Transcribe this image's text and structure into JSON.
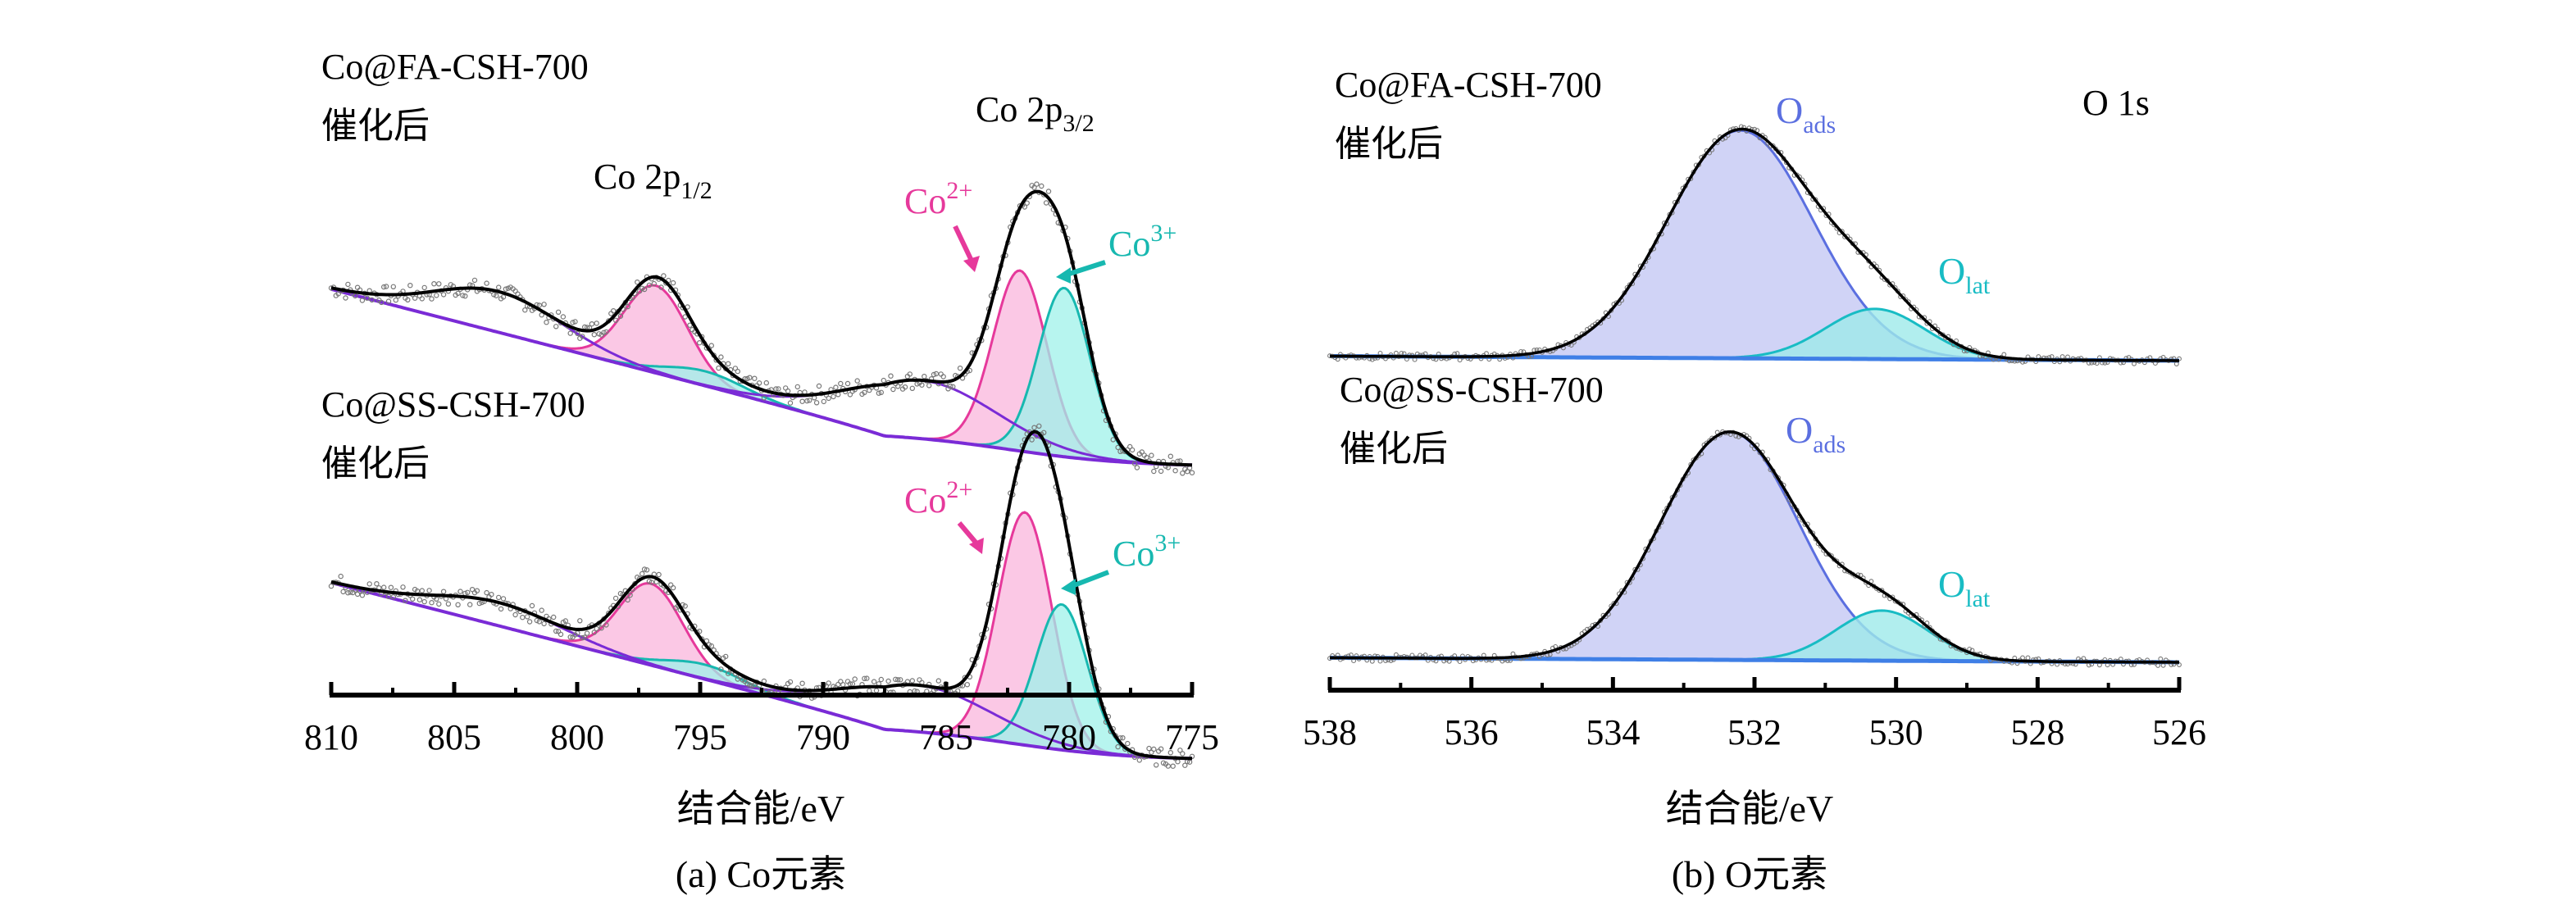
{
  "colors": {
    "envelope": "#000000",
    "background_line": "#7a2bd6",
    "co2_fill": "#f9b6dc",
    "co2_line": "#e6399b",
    "co3_fill": "#9ff2ea",
    "co3_line": "#17b8b0",
    "oads_fill": "#c4c8f4",
    "oads_line": "#5b6fe0",
    "olat_fill": "#9eeaea",
    "olat_line": "#18bcc4",
    "o_baseline": "#3f7fe6",
    "points": "#777777"
  },
  "chart_data": [
    {
      "id": "co",
      "type": "line",
      "chart_type_detail": "XPS spectrum with peak fitting (stacked, offset vertically)",
      "caption": "(a) Co元素",
      "xlabel": "结合能/eV",
      "xlim": [
        810,
        775
      ],
      "x_reversed": true,
      "x_ticks": [
        810,
        805,
        800,
        795,
        790,
        785,
        780,
        775
      ],
      "y_axis_shown": false,
      "grid": false,
      "peak_labels": {
        "p12": "Co 2p",
        "p12_sub": "1/2",
        "p32": "Co 2p",
        "p32_sub": "3/2"
      },
      "samples": [
        {
          "name_line1": "Co@FA-CSH-700",
          "name_line2": "催化后",
          "species_labels": {
            "co2": "Co",
            "co2_sup": "2+",
            "co3": "Co",
            "co3_sup": "3+"
          },
          "baseline": {
            "left": 0.33,
            "right": -0.16,
            "slope_to": 787.5,
            "drop_center": 782.5,
            "drop": -0.12,
            "drop_width": 2.5
          },
          "peaks": [
            {
              "kind": "sat_low",
              "center": 803.2,
              "height": 0.14,
              "width": 2.6
            },
            {
              "kind": "co_2p12",
              "center": 796.8,
              "height": 0.3,
              "width": 1.3
            },
            {
              "kind": "sat_mid",
              "center": 794.8,
              "height": 0.05,
              "width": 1.6
            },
            {
              "kind": "sat_high",
              "center": 786.0,
              "height": 0.2,
              "width": 3.0
            },
            {
              "kind": "co2",
              "center": 782.0,
              "height": 0.62,
              "width": 1.1
            },
            {
              "kind": "co3",
              "center": 780.2,
              "height": 0.58,
              "width": 1.05
            }
          ]
        },
        {
          "name_line1": "Co@SS-CSH-700",
          "name_line2": "催化后",
          "species_labels": {
            "co2": "Co",
            "co2_sup": "2+",
            "co3": "Co",
            "co3_sup": "3+"
          },
          "baseline": {
            "left": 0.33,
            "right": -0.16,
            "slope_to": 787.5,
            "drop_center": 782.5,
            "drop": -0.12,
            "drop_width": 2.5
          },
          "peaks": [
            {
              "kind": "sat_low",
              "center": 803.2,
              "height": 0.08,
              "width": 2.6
            },
            {
              "kind": "co_2p12",
              "center": 797.0,
              "height": 0.28,
              "width": 1.3
            },
            {
              "kind": "sat_mid",
              "center": 794.8,
              "height": 0.05,
              "width": 1.6
            },
            {
              "kind": "sat_high",
              "center": 786.2,
              "height": 0.16,
              "width": 3.0
            },
            {
              "kind": "co2",
              "center": 781.8,
              "height": 0.8,
              "width": 1.1
            },
            {
              "kind": "co3",
              "center": 780.3,
              "height": 0.5,
              "width": 1.05
            }
          ]
        }
      ]
    },
    {
      "id": "o",
      "type": "line",
      "chart_type_detail": "XPS spectrum with peak fitting (stacked, offset vertically)",
      "caption": "(b) O元素",
      "xlabel": "结合能/eV",
      "xlim": [
        538,
        526
      ],
      "x_reversed": true,
      "x_ticks": [
        538,
        536,
        534,
        532,
        530,
        528,
        526
      ],
      "y_axis_shown": false,
      "grid": false,
      "region_label": "O 1s",
      "samples": [
        {
          "name_line1": "Co@FA-CSH-700",
          "name_line2": "催化后",
          "species_labels": {
            "oads": "O",
            "oads_sub": "ads",
            "olat": "O",
            "olat_sub": "lat"
          },
          "peaks": [
            {
              "kind": "oads",
              "center": 532.2,
              "height": 1.0,
              "width": 1.03
            },
            {
              "kind": "olat",
              "center": 530.3,
              "height": 0.22,
              "width": 0.7
            }
          ]
        },
        {
          "name_line1": "Co@SS-CSH-700",
          "name_line2": "催化后",
          "species_labels": {
            "oads": "O",
            "oads_sub": "ads",
            "olat": "O",
            "olat_sub": "lat"
          },
          "peaks": [
            {
              "kind": "oads",
              "center": 532.35,
              "height": 1.0,
              "width": 0.97
            },
            {
              "kind": "olat",
              "center": 530.2,
              "height": 0.22,
              "width": 0.65
            }
          ]
        }
      ]
    }
  ]
}
